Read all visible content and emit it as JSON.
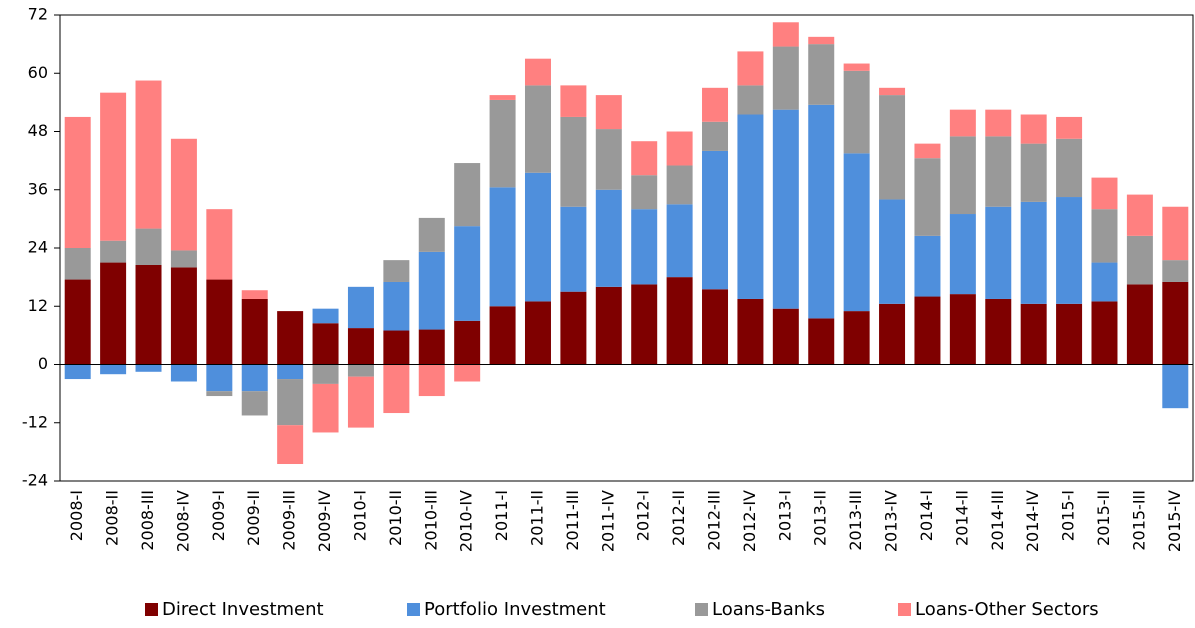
{
  "chart_data": {
    "type": "stacked-bar",
    "categories": [
      "2008-I",
      "2008-II",
      "2008-III",
      "2008-IV",
      "2009-I",
      "2009-II",
      "2009-III",
      "2009-IV",
      "2010-I",
      "2010-II",
      "2010-III",
      "2010-IV",
      "2011-I",
      "2011-II",
      "2011-III",
      "2011-IV",
      "2012-I",
      "2012-II",
      "2012-III",
      "2012-IV",
      "2013-I",
      "2013-II",
      "2013-III",
      "2013-IV",
      "2014-I",
      "2014-II",
      "2014-III",
      "2014-IV",
      "2015-I",
      "2015-II",
      "2015-III",
      "2015-IV"
    ],
    "series": [
      {
        "name": "Direct Investment",
        "color": "#7f0000",
        "values": [
          17.5,
          21,
          20.5,
          20,
          17.5,
          13.5,
          11,
          8.5,
          7.5,
          7,
          7.2,
          9,
          12,
          13,
          15,
          16,
          16.5,
          18,
          15.5,
          13.5,
          11.5,
          9.5,
          11,
          12.5,
          14,
          14.5,
          13.5,
          12.5,
          12.5,
          13,
          16.5,
          17
        ]
      },
      {
        "name": "Portfolio Investment",
        "color": "#4f8fdc",
        "values": [
          -3,
          -2,
          -1.5,
          -3.5,
          -5.5,
          -5.5,
          -3,
          3,
          8.5,
          10,
          16,
          19.5,
          24.5,
          26.5,
          17.5,
          20,
          15.5,
          15,
          28.5,
          38,
          41,
          44,
          32.5,
          21.5,
          12.5,
          16.5,
          19,
          21,
          22,
          8,
          0,
          -9
        ]
      },
      {
        "name": "Loans-Banks",
        "color": "#999999",
        "values": [
          6.5,
          4.5,
          7.5,
          3.5,
          -1,
          -5,
          -9.5,
          -4,
          -2.5,
          4.5,
          7,
          13,
          18,
          18,
          18.5,
          12.5,
          7,
          8,
          6,
          6,
          13,
          12.5,
          17,
          21.5,
          16,
          16,
          14.5,
          12,
          12,
          11,
          10,
          4.5
        ]
      },
      {
        "name": "Loans-Other Sectors",
        "color": "#ff8080",
        "values": [
          27,
          30.5,
          30.5,
          23,
          14.5,
          1.8,
          -8,
          -10,
          -10.5,
          -10,
          -6.5,
          -3.5,
          1,
          5.5,
          6.5,
          7,
          7,
          7,
          7,
          7,
          5,
          1.5,
          1.5,
          1.5,
          3,
          5.5,
          5.5,
          6,
          4.5,
          6.5,
          8.5,
          11
        ]
      }
    ],
    "ylim": [
      -24,
      72
    ],
    "yticks": [
      -24,
      -12,
      0,
      12,
      24,
      36,
      48,
      60,
      72
    ],
    "grid": false
  }
}
